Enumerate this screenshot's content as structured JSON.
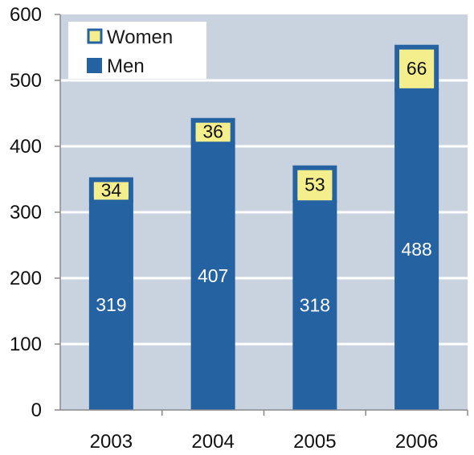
{
  "chart_data": {
    "type": "bar",
    "stacked": true,
    "categories": [
      "2003",
      "2004",
      "2005",
      "2006"
    ],
    "series": [
      {
        "name": "Men",
        "values": [
          319,
          407,
          318,
          488
        ]
      },
      {
        "name": "Women",
        "values": [
          34,
          36,
          53,
          66
        ]
      }
    ],
    "ylim": [
      0,
      600
    ],
    "yticks": [
      "0",
      "100",
      "200",
      "300",
      "400",
      "500",
      "600"
    ],
    "grid": true,
    "legend_position": "top-left",
    "data_labels": true,
    "colors": {
      "plot_background": "#c9d3e0",
      "men_bar": "#2462a1",
      "women_bar": "#f5ee8c",
      "gridline": "#ffffff",
      "axis": "#8a8a8a",
      "men_label": "#ffffff",
      "women_label": "#111111"
    }
  }
}
